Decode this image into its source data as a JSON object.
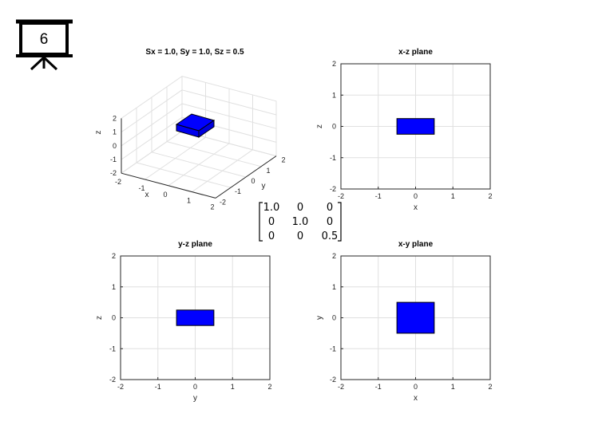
{
  "slide_number": "6",
  "icon": "presentation-board-icon",
  "colors": {
    "shape": "#0000ff",
    "highlight": "#e00000",
    "grid": "#e0e0e0"
  },
  "matrix": {
    "rows": [
      [
        "1.0",
        "0",
        "0"
      ],
      [
        "0",
        "1.0",
        "0"
      ],
      [
        "0",
        "0",
        "0.5"
      ]
    ],
    "highlight": [
      2,
      2
    ]
  },
  "plot3d": {
    "title": "Sx = 1.0, Sy = 1.0, Sz = 0.5",
    "xlabel": "x",
    "ylabel": "y",
    "zlabel": "z",
    "x_ticks": [
      "-1",
      "0",
      "1",
      "2"
    ],
    "y_ticks": [
      "-2",
      "-1",
      "0",
      "1",
      "2"
    ],
    "z_ticks": [
      "-2",
      "-1",
      "0",
      "1",
      "2"
    ],
    "x_extra_tick": "-2"
  },
  "panels": [
    {
      "id": "xz",
      "title": "x-z plane",
      "xlabel": "x",
      "ylabel": "z",
      "xlim": [
        -2,
        2
      ],
      "ylim": [
        -2,
        2
      ],
      "ticks": [
        "-2",
        "-1",
        "0",
        "1",
        "2"
      ],
      "rect": {
        "x0": -0.5,
        "x1": 0.5,
        "y0": -0.25,
        "y1": 0.25
      }
    },
    {
      "id": "yz",
      "title": "y-z plane",
      "xlabel": "y",
      "ylabel": "z",
      "xlim": [
        -2,
        2
      ],
      "ylim": [
        -2,
        2
      ],
      "ticks": [
        "-2",
        "-1",
        "0",
        "1",
        "2"
      ],
      "rect": {
        "x0": -0.5,
        "x1": 0.5,
        "y0": -0.25,
        "y1": 0.25
      }
    },
    {
      "id": "xy",
      "title": "x-y plane",
      "xlabel": "x",
      "ylabel": "y",
      "xlim": [
        -2,
        2
      ],
      "ylim": [
        -2,
        2
      ],
      "ticks": [
        "-2",
        "-1",
        "0",
        "1",
        "2"
      ],
      "rect": {
        "x0": -0.5,
        "x1": 0.5,
        "y0": -0.5,
        "y1": 0.5
      }
    }
  ]
}
